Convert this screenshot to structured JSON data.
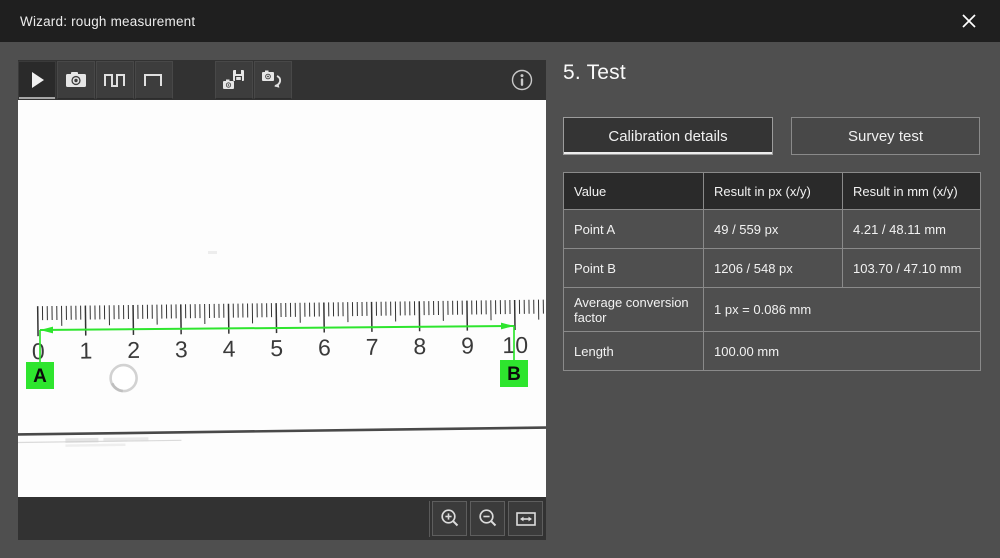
{
  "window": {
    "title": "Wizard: rough measurement"
  },
  "icons": {
    "close": "close-icon",
    "toolbar": [
      "play-icon",
      "camera-icon",
      "pulse-train-icon",
      "single-pulse-icon",
      "camera-save-icon",
      "camera-revert-icon",
      "info-icon"
    ],
    "zoombar": [
      "zoom-in-icon",
      "zoom-out-icon",
      "fit-width-icon"
    ]
  },
  "viewer": {
    "ruler": {
      "labels": [
        "0",
        "1",
        "2",
        "3",
        "4",
        "5",
        "6",
        "7",
        "8",
        "9",
        "10"
      ],
      "marker_a": "A",
      "marker_b": "B"
    }
  },
  "panel": {
    "heading": "5. Test",
    "tabs": [
      {
        "label": "Calibration details",
        "active": true
      },
      {
        "label": "Survey test",
        "active": false
      }
    ],
    "table": {
      "headers": [
        "Value",
        "Result in px (x/y)",
        "Result in mm (x/y)"
      ],
      "rows": [
        {
          "label": "Point A",
          "px": "49 / 559 px",
          "mm": "4.21 / 48.11 mm"
        },
        {
          "label": "Point B",
          "px": "1206 / 548 px",
          "mm": "103.70 / 47.10 mm"
        },
        {
          "label": "Average conversion factor",
          "value": "1 px = 0.086 mm"
        },
        {
          "label": "Length",
          "value": "100.00 mm"
        }
      ]
    }
  },
  "colors": {
    "accent_green": "#2ee52e",
    "titlebar_bg": "#1f1f1f",
    "dialog_bg": "#4f4f4f"
  }
}
